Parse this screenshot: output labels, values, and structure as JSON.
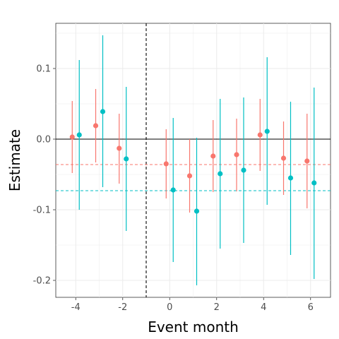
{
  "chart_data": {
    "type": "scatter",
    "xlabel": "Event month",
    "ylabel": "Estimate",
    "xlim": [
      -4.85,
      6.85
    ],
    "ylim": [
      -0.224,
      0.164
    ],
    "x_ticks": [
      -4,
      -2,
      0,
      2,
      4,
      6
    ],
    "x_tick_labels": [
      "-4",
      "-2",
      "0",
      "2",
      "4",
      "6"
    ],
    "y_ticks": [
      -0.2,
      -0.1,
      0.0,
      0.1
    ],
    "y_tick_labels": [
      "-0.2",
      "-0.1",
      "0.0",
      "0.1"
    ],
    "grid": true,
    "legend": "none",
    "reference_lines": [
      {
        "orientation": "horizontal",
        "value": 0,
        "style": "solid",
        "color": "#000000"
      },
      {
        "orientation": "vertical",
        "value": -1,
        "style": "dashed",
        "color": "#000000"
      },
      {
        "orientation": "horizontal",
        "value": -0.036,
        "style": "dashed",
        "color": "#f8766d"
      },
      {
        "orientation": "horizontal",
        "value": -0.073,
        "style": "dashed",
        "color": "#00bfc4"
      }
    ],
    "series": [
      {
        "color": "#f8766d",
        "x": [
          -4.15,
          -3.15,
          -2.15,
          -0.15,
          0.85,
          1.85,
          2.85,
          3.85,
          4.85,
          5.85
        ],
        "y": [
          0.003,
          0.019,
          -0.013,
          -0.035,
          -0.052,
          -0.024,
          -0.022,
          0.006,
          -0.027,
          -0.031
        ],
        "lower": [
          -0.048,
          -0.033,
          -0.063,
          -0.084,
          -0.104,
          -0.075,
          -0.074,
          -0.045,
          -0.079,
          -0.098
        ],
        "upper": [
          0.054,
          0.071,
          0.036,
          0.014,
          0.0,
          0.027,
          0.029,
          0.057,
          0.025,
          0.036
        ]
      },
      {
        "color": "#00bfc4",
        "x": [
          -3.85,
          -2.85,
          -1.85,
          0.15,
          1.15,
          2.15,
          3.15,
          4.15,
          5.15,
          6.15
        ],
        "y": [
          0.006,
          0.039,
          -0.028,
          -0.072,
          -0.102,
          -0.049,
          -0.044,
          0.011,
          -0.055,
          -0.062
        ],
        "lower": [
          -0.1,
          -0.068,
          -0.13,
          -0.174,
          -0.207,
          -0.155,
          -0.147,
          -0.093,
          -0.164,
          -0.198
        ],
        "upper": [
          0.112,
          0.147,
          0.074,
          0.03,
          0.002,
          0.057,
          0.059,
          0.116,
          0.053,
          0.073
        ]
      }
    ]
  }
}
